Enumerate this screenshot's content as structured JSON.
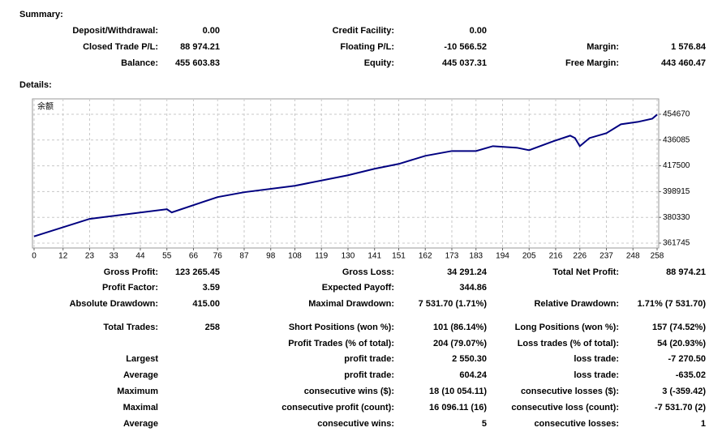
{
  "summary": {
    "title": "Summary:",
    "rows": [
      [
        "Deposit/Withdrawal:",
        "0.00",
        "Credit Facility:",
        "0.00",
        null,
        null
      ],
      [
        "Closed Trade P/L:",
        "88 974.21",
        "Floating P/L:",
        "-10 566.52",
        "Margin:",
        "1 576.84"
      ],
      [
        "Balance:",
        "455 603.83",
        "Equity:",
        "445 037.31",
        "Free Margin:",
        "443 460.47"
      ]
    ]
  },
  "details": {
    "title": "Details:",
    "rows": [
      [
        "Gross Profit:",
        "123 265.45",
        "Gross Loss:",
        "34 291.24",
        "Total Net Profit:",
        "88 974.21"
      ],
      [
        "Profit Factor:",
        "3.59",
        "Expected Payoff:",
        "344.86",
        null,
        null
      ],
      [
        "Absolute Drawdown:",
        "415.00",
        "Maximal Drawdown:",
        "7 531.70 (1.71%)",
        "Relative Drawdown:",
        "1.71% (7 531.70)"
      ],
      [
        "Total Trades:",
        "258",
        "Short Positions (won %):",
        "101 (86.14%)",
        "Long Positions (won %):",
        "157 (74.52%)"
      ],
      [
        null,
        null,
        "Profit Trades (% of total):",
        "204 (79.07%)",
        "Loss trades (% of total):",
        "54 (20.93%)"
      ],
      [
        "Largest",
        null,
        "profit trade:",
        "2 550.30",
        "loss trade:",
        "-7 270.50"
      ],
      [
        "Average",
        null,
        "profit trade:",
        "604.24",
        "loss trade:",
        "-635.02"
      ],
      [
        "Maximum",
        null,
        "consecutive wins ($):",
        "18 (10 054.11)",
        "consecutive losses ($):",
        "3 (-359.42)"
      ],
      [
        "Maximal",
        null,
        "consecutive profit (count):",
        "16 096.11 (16)",
        "consecutive loss (count):",
        "-7 531.70 (2)"
      ],
      [
        "Average",
        null,
        "consecutive wins:",
        "5",
        "consecutive losses:",
        "1"
      ]
    ]
  },
  "chart_data": {
    "type": "line",
    "label": "余额",
    "x": [
      0,
      23,
      55,
      57,
      76,
      87,
      108,
      130,
      141,
      151,
      162,
      173,
      183,
      190,
      200,
      205,
      215,
      222,
      224,
      226,
      230,
      237,
      243,
      250,
      256,
      258
    ],
    "series": [
      {
        "name": "余额",
        "color": "#000080",
        "values": [
          366630,
          379220,
          386200,
          383900,
          394950,
          398450,
          403110,
          410680,
          415340,
          418840,
          424670,
          428160,
          428160,
          431660,
          430500,
          428750,
          435150,
          439230,
          437500,
          431660,
          437500,
          441000,
          447400,
          449140,
          451470,
          454380
        ]
      }
    ],
    "xlim": [
      0,
      258
    ],
    "xticks": [
      0,
      12,
      23,
      33,
      44,
      55,
      66,
      76,
      87,
      98,
      108,
      119,
      130,
      141,
      151,
      162,
      173,
      183,
      194,
      205,
      216,
      226,
      237,
      248,
      258
    ],
    "ylim": [
      358249,
      465740
    ],
    "yticks": [
      361745,
      380330,
      398915,
      417500,
      436085,
      454670
    ],
    "grid": true
  }
}
